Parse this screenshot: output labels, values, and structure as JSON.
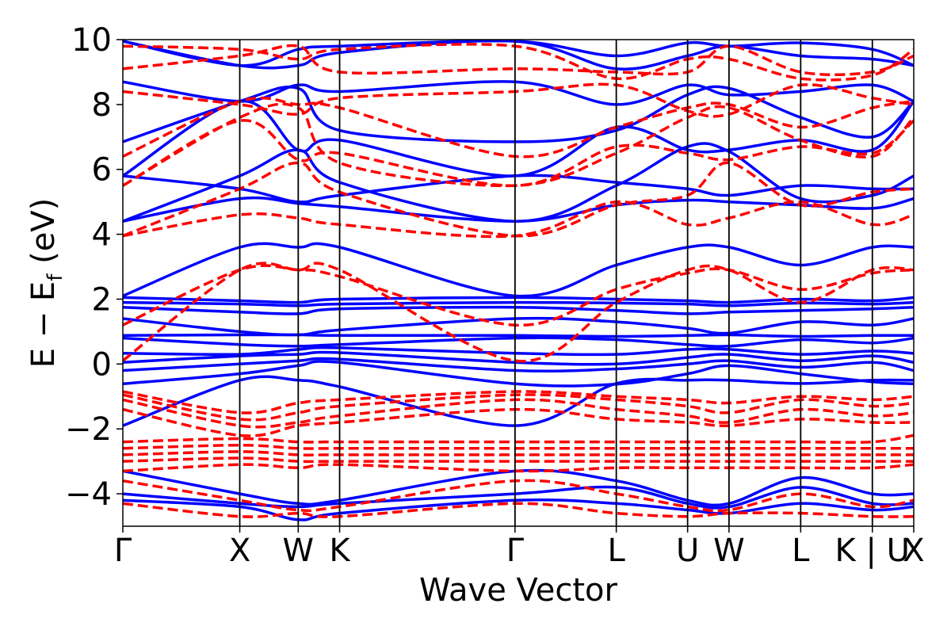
{
  "chart_data": {
    "type": "line",
    "title": "",
    "xlabel": "Wave Vector",
    "ylabel_main": "E − E",
    "ylabel_sub": "f",
    "ylabel_unit": " (eV)",
    "ylim": [
      -5,
      10
    ],
    "yticks": [
      -4,
      -2,
      0,
      2,
      4,
      6,
      8,
      10
    ],
    "ytick_labels": [
      "−4",
      "−2",
      "0",
      "2",
      "4",
      "6",
      "8",
      "10"
    ],
    "kpath_labels": [
      "Γ",
      "X",
      "W",
      "K",
      "Γ",
      "L",
      "U",
      "W",
      "L",
      "K | U",
      "X"
    ],
    "kpath_positions": [
      0,
      1,
      1.5,
      1.854,
      3.354,
      4.22,
      4.83,
      5.184,
      5.797,
      6.41,
      6.764
    ],
    "grid": false,
    "legend": "none",
    "series_styles": [
      {
        "color": "#0000ff",
        "dash": "solid"
      },
      {
        "color": "#ff0000",
        "dash": "dashed"
      }
    ],
    "series": [
      {
        "style": 0,
        "values": [
          [
            -0.61,
            -0.3,
            -0.05,
            0.05,
            -0.61,
            -0.62,
            -0.3,
            -0.05,
            -0.3,
            -0.55,
            -0.61
          ],
          [
            -0.2,
            0.0,
            0.1,
            0.15,
            -0.2,
            -0.15,
            0.0,
            0.1,
            -0.1,
            0.05,
            -0.2
          ],
          [
            0.05,
            0.25,
            0.3,
            0.35,
            0.05,
            0.0,
            0.2,
            0.3,
            0.1,
            0.25,
            0.05
          ],
          [
            0.33,
            0.3,
            0.45,
            0.5,
            0.33,
            0.3,
            0.45,
            0.45,
            0.3,
            0.4,
            0.33
          ],
          [
            0.8,
            0.6,
            0.55,
            0.6,
            0.8,
            0.75,
            0.6,
            0.55,
            0.75,
            0.65,
            0.8
          ],
          [
            0.88,
            0.9,
            0.9,
            0.88,
            0.88,
            0.85,
            0.88,
            0.9,
            0.85,
            0.88,
            0.88
          ],
          [
            1.4,
            1.0,
            0.9,
            1.05,
            1.4,
            1.3,
            1.1,
            0.95,
            1.3,
            1.2,
            1.4
          ],
          [
            1.75,
            1.6,
            1.55,
            1.7,
            1.75,
            1.65,
            1.55,
            1.6,
            1.65,
            1.7,
            1.75
          ],
          [
            1.9,
            1.85,
            1.8,
            1.85,
            1.9,
            1.88,
            1.85,
            1.8,
            1.88,
            1.85,
            1.9
          ],
          [
            2.05,
            1.95,
            1.9,
            2.0,
            2.05,
            2.0,
            1.95,
            1.9,
            2.0,
            1.95,
            2.05
          ],
          [
            2.1,
            3.6,
            3.6,
            3.6,
            2.1,
            3.05,
            3.6,
            3.6,
            3.05,
            3.6,
            3.6
          ],
          [
            -1.9,
            -0.5,
            -0.5,
            -0.7,
            -1.9,
            -0.6,
            -0.5,
            -0.5,
            -0.6,
            -0.5,
            -0.5
          ],
          [
            4.4,
            5.1,
            4.95,
            4.85,
            4.4,
            4.9,
            5.05,
            5.0,
            4.9,
            4.8,
            5.1
          ],
          [
            4.4,
            5.8,
            6.6,
            5.6,
            4.4,
            5.5,
            6.7,
            6.55,
            5.1,
            5.2,
            5.8
          ],
          [
            5.8,
            5.4,
            5.0,
            5.2,
            5.8,
            5.6,
            5.4,
            5.2,
            5.5,
            5.4,
            5.4
          ],
          [
            5.8,
            8.1,
            6.6,
            6.9,
            5.8,
            7.3,
            6.6,
            6.6,
            6.9,
            6.6,
            8.1
          ],
          [
            6.85,
            8.1,
            8.5,
            7.2,
            6.85,
            7.2,
            8.3,
            8.5,
            7.6,
            7.0,
            8.1
          ],
          [
            8.7,
            8.1,
            8.6,
            8.4,
            8.7,
            8.0,
            8.6,
            8.3,
            8.4,
            8.6,
            8.1
          ],
          [
            9.95,
            9.2,
            9.2,
            9.6,
            9.95,
            9.1,
            9.5,
            9.8,
            9.5,
            9.4,
            9.2
          ],
          [
            9.95,
            9.2,
            9.7,
            9.8,
            9.95,
            9.5,
            9.9,
            9.8,
            9.9,
            9.7,
            9.2
          ],
          [
            -3.3,
            -4.0,
            -4.3,
            -4.2,
            -3.3,
            -3.6,
            -4.2,
            -4.3,
            -3.5,
            -4.0,
            -4.0
          ],
          [
            -4.0,
            -4.3,
            -4.4,
            -4.3,
            -4.0,
            -3.8,
            -4.3,
            -4.4,
            -3.8,
            -4.3,
            -4.3
          ],
          [
            -4.2,
            -4.4,
            -4.8,
            -4.6,
            -4.2,
            -4.3,
            -4.5,
            -4.6,
            -4.3,
            -4.5,
            -4.4
          ]
        ]
      },
      {
        "style": 1,
        "values": [
          [
            0.1,
            2.9,
            2.9,
            2.9,
            0.1,
            1.9,
            2.9,
            2.9,
            1.9,
            2.9,
            2.9
          ],
          [
            1.2,
            2.9,
            2.9,
            2.7,
            1.2,
            2.3,
            2.8,
            2.9,
            2.3,
            2.8,
            2.9
          ],
          [
            -0.85,
            -1.5,
            -1.2,
            -1.1,
            -0.85,
            -1.0,
            -1.1,
            -1.2,
            -1.0,
            -1.1,
            -1.0
          ],
          [
            -0.95,
            -1.7,
            -1.5,
            -1.3,
            -0.95,
            -1.1,
            -1.3,
            -1.5,
            -1.1,
            -1.3,
            -1.2
          ],
          [
            -1.1,
            -1.9,
            -1.8,
            -1.6,
            -1.1,
            -1.4,
            -1.6,
            -1.8,
            -1.4,
            -1.6,
            -1.5
          ],
          [
            -1.4,
            -2.2,
            -1.9,
            -1.8,
            -1.4,
            -1.7,
            -1.8,
            -1.9,
            -1.7,
            -1.8,
            -1.8
          ],
          [
            -2.4,
            -2.3,
            -2.4,
            -2.4,
            -2.4,
            -2.4,
            -2.4,
            -2.4,
            -2.4,
            -2.4,
            -2.2
          ],
          [
            -2.6,
            -2.5,
            -2.6,
            -2.6,
            -2.6,
            -2.6,
            -2.6,
            -2.6,
            -2.6,
            -2.6,
            -2.6
          ],
          [
            -2.8,
            -2.7,
            -2.8,
            -2.8,
            -2.8,
            -2.8,
            -2.8,
            -2.8,
            -2.8,
            -2.8,
            -2.8
          ],
          [
            -3.0,
            -2.9,
            -3.0,
            -3.0,
            -3.0,
            -3.0,
            -3.0,
            -3.0,
            -3.0,
            -3.0,
            -3.0
          ],
          [
            -3.3,
            -3.1,
            -3.2,
            -3.1,
            -3.3,
            -3.2,
            -3.2,
            -3.2,
            -3.2,
            -3.2,
            -3.1
          ],
          [
            3.95,
            4.6,
            4.5,
            4.3,
            3.95,
            5.0,
            4.3,
            4.5,
            5.0,
            4.3,
            4.6
          ],
          [
            3.95,
            5.4,
            6.2,
            5.3,
            3.95,
            4.9,
            5.2,
            6.2,
            4.9,
            5.3,
            5.4
          ],
          [
            5.5,
            7.5,
            6.3,
            6.5,
            5.5,
            6.7,
            6.5,
            6.3,
            6.7,
            6.5,
            7.5
          ],
          [
            5.5,
            7.6,
            7.9,
            6.2,
            5.5,
            6.5,
            7.6,
            7.9,
            6.9,
            6.4,
            7.6
          ],
          [
            6.4,
            8.1,
            8.0,
            7.9,
            6.4,
            7.3,
            7.9,
            8.0,
            7.3,
            7.9,
            8.1
          ],
          [
            8.4,
            8.0,
            7.7,
            8.2,
            8.4,
            8.6,
            7.8,
            7.7,
            8.6,
            8.2,
            8.0
          ],
          [
            9.1,
            9.5,
            9.8,
            9.0,
            9.1,
            9.0,
            9.0,
            9.8,
            9.0,
            9.0,
            9.5
          ],
          [
            9.8,
            9.7,
            9.4,
            9.7,
            9.8,
            8.8,
            9.4,
            9.4,
            8.8,
            8.9,
            9.7
          ],
          [
            -3.6,
            -4.2,
            -4.5,
            -4.4,
            -3.6,
            -4.0,
            -4.4,
            -4.5,
            -4.0,
            -4.4,
            -4.2
          ],
          [
            -4.3,
            -4.7,
            -4.6,
            -4.7,
            -4.3,
            -4.6,
            -4.7,
            -4.6,
            -4.6,
            -4.7,
            -4.7
          ]
        ]
      }
    ]
  }
}
